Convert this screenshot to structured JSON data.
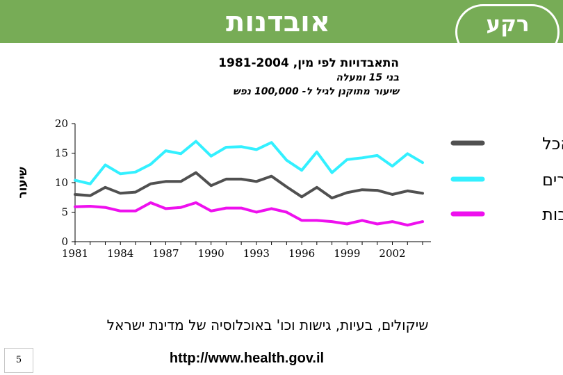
{
  "slide": {
    "title": "אובדנות",
    "side_title": "רקע",
    "caption": "שיקולים, בעיות, גישות וכו' באוכלוסיה של מדינת ישראל",
    "page_number": "5",
    "url": "http://www.health.gov.il"
  },
  "colors": {
    "band": "#77ac56",
    "total": "#505050",
    "males": "#33f0ff",
    "females": "#ee10ee"
  },
  "chart_data": {
    "type": "line",
    "title": "התאבדויות לפי מין, 1981-2004",
    "subtitle1": "בני 15 ומעלה",
    "subtitle2": "שיעור מתוקנן לגיל ל- 100,000 נפש",
    "ylabel": "שיעור",
    "xlabel": "",
    "ylim": [
      0,
      20
    ],
    "xlim": [
      1981,
      2004
    ],
    "yticks": [
      0,
      5,
      10,
      15,
      20
    ],
    "xticks": [
      1981,
      1984,
      1987,
      1990,
      1993,
      1996,
      1999,
      2002
    ],
    "x": [
      1981,
      1982,
      1983,
      1984,
      1985,
      1986,
      1987,
      1988,
      1989,
      1990,
      1991,
      1992,
      1993,
      1994,
      1995,
      1996,
      1997,
      1998,
      1999,
      2000,
      2001,
      2002,
      2003,
      2004
    ],
    "series": [
      {
        "name": "זכרים",
        "key": "males",
        "values": [
          10.4,
          9.8,
          13.0,
          11.5,
          11.8,
          13.1,
          15.4,
          14.9,
          17.0,
          14.5,
          16.0,
          16.1,
          15.6,
          16.8,
          13.8,
          12.1,
          15.2,
          11.7,
          13.9,
          14.2,
          14.6,
          12.8,
          14.9,
          13.4
        ]
      },
      {
        "name": "סך הכל",
        "key": "total",
        "values": [
          8.0,
          7.8,
          9.2,
          8.2,
          8.4,
          9.8,
          10.2,
          10.2,
          11.7,
          9.5,
          10.6,
          10.6,
          10.2,
          11.1,
          9.3,
          7.6,
          9.2,
          7.4,
          8.3,
          8.8,
          8.7,
          8.0,
          8.6,
          8.2
        ]
      },
      {
        "name": "נקבות",
        "key": "females",
        "values": [
          5.9,
          6.0,
          5.8,
          5.2,
          5.2,
          6.6,
          5.6,
          5.8,
          6.6,
          5.2,
          5.7,
          5.7,
          5.0,
          5.6,
          5.0,
          3.6,
          3.6,
          3.4,
          3.0,
          3.6,
          3.0,
          3.4,
          2.8,
          3.4
        ]
      }
    ],
    "legend": [
      {
        "label": "סך הכל",
        "key": "total"
      },
      {
        "label": "זכרים",
        "key": "males"
      },
      {
        "label": "נקבות",
        "key": "females"
      }
    ],
    "legend_position": "right",
    "grid": false
  }
}
